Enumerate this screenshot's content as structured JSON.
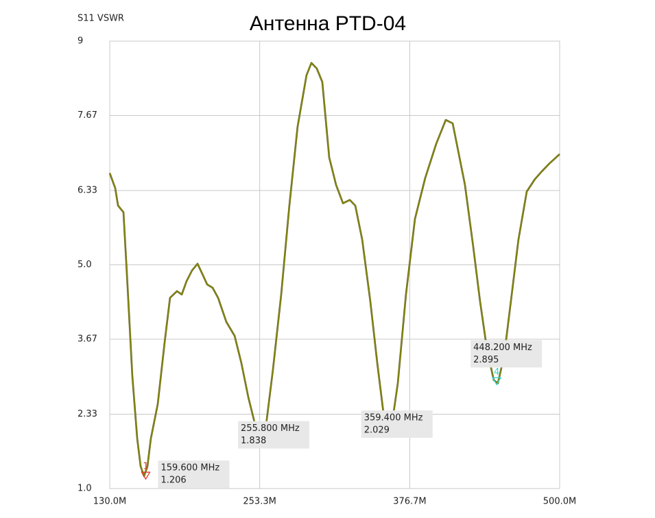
{
  "chart_data": {
    "type": "line",
    "title": "Антенна PTD-04",
    "ylabel": "S11 VSWR",
    "xlim": [
      130,
      500
    ],
    "ylim": [
      1,
      9
    ],
    "xticks": [
      {
        "value": 130,
        "label": "130.0M"
      },
      {
        "value": 253.3,
        "label": "253.3M"
      },
      {
        "value": 376.7,
        "label": "376.7M"
      },
      {
        "value": 500,
        "label": "500.0M"
      }
    ],
    "yticks": [
      {
        "value": 1,
        "label": "1.0"
      },
      2.33,
      3.67,
      {
        "value": 5,
        "label": "5.0"
      },
      6.33,
      7.67,
      9
    ],
    "grid": true,
    "series": [
      {
        "color": "#8f8f14",
        "x": [
          130,
          134.5,
          136.8,
          141.3,
          144.1,
          148.6,
          152.6,
          155.4,
          158.2,
          161.0,
          163.8,
          169.5,
          175.1,
          179.6,
          185.3,
          189.2,
          193.2,
          197.7,
          202.2,
          206.1,
          210.1,
          214.6,
          219.1,
          225.9,
          232.7,
          238.3,
          244.0,
          249.6,
          254.1,
          258.6,
          264.2,
          271.0,
          277.7,
          284.5,
          291.8,
          295.8,
          300.3,
          304.8,
          310.5,
          316.1,
          321.8,
          327.4,
          331.9,
          337.6,
          344.3,
          350.0,
          355.6,
          359.0,
          362.4,
          366.9,
          373.6,
          381.0,
          389.4,
          398.4,
          406.3,
          412.0,
          416.5,
          422.1,
          428.9,
          434.5,
          440.2,
          445.8,
          449.2,
          454.3,
          459.9,
          466.1,
          472.9,
          479.6,
          485.3,
          492.0,
          500
        ],
        "values": [
          6.64,
          6.37,
          6.06,
          5.94,
          4.84,
          3.0,
          1.89,
          1.4,
          1.22,
          1.4,
          1.89,
          2.51,
          3.61,
          4.41,
          4.53,
          4.47,
          4.71,
          4.9,
          5.02,
          4.84,
          4.65,
          4.59,
          4.41,
          3.98,
          3.73,
          3.24,
          2.63,
          2.14,
          1.89,
          2.14,
          3.12,
          4.47,
          6.06,
          7.47,
          8.39,
          8.61,
          8.51,
          8.27,
          6.92,
          6.43,
          6.1,
          6.16,
          6.06,
          5.45,
          4.35,
          3.24,
          2.26,
          2.02,
          2.2,
          2.88,
          4.47,
          5.82,
          6.55,
          7.16,
          7.59,
          7.53,
          7.04,
          6.43,
          5.33,
          4.35,
          3.49,
          2.94,
          2.88,
          3.37,
          4.35,
          5.45,
          6.31,
          6.53,
          6.67,
          6.82,
          6.98
        ]
      }
    ],
    "markers": [
      {
        "label": "1",
        "x": 159.6,
        "value": 1.206,
        "freq_label": "159.600 MHz",
        "value_label": "1.206",
        "color": "#e03a2a"
      },
      {
        "label": "2",
        "x": 255.8,
        "value": 1.838,
        "freq_label": "255.800 MHz",
        "value_label": "1.838",
        "color": "#3cc83c"
      },
      {
        "label": "3",
        "x": 359.4,
        "value": 2.029,
        "freq_label": "359.400 MHz",
        "value_label": "2.029",
        "color": "#2a2ad0"
      },
      {
        "label": "4",
        "x": 448.2,
        "value": 2.895,
        "freq_label": "448.200 MHz",
        "value_label": "2.895",
        "color": "#30d8d8"
      }
    ]
  }
}
